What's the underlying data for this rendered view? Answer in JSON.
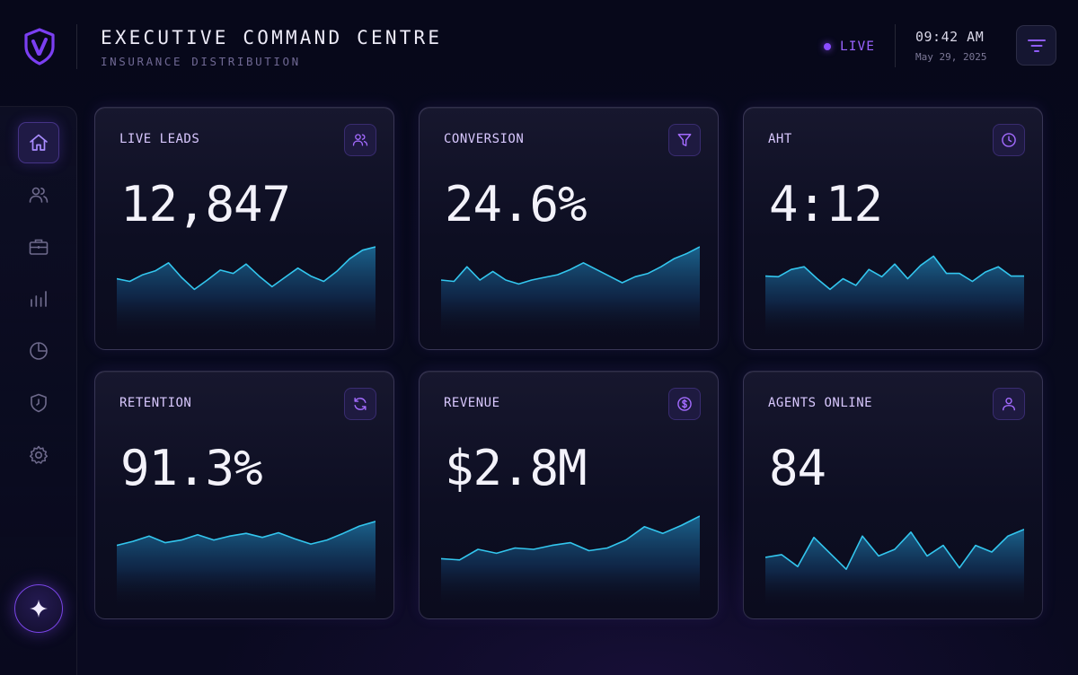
{
  "header": {
    "title": "EXECUTIVE COMMAND CENTRE",
    "subtitle": "INSURANCE DISTRIBUTION",
    "live_label": "LIVE",
    "time": "09:42 AM",
    "date": "May 29, 2025",
    "logo_icon": "shield-logo-icon",
    "filter_icon": "filter-icon"
  },
  "sidebar": {
    "items": [
      {
        "icon": "home-icon",
        "active": true
      },
      {
        "icon": "users-icon",
        "active": false
      },
      {
        "icon": "briefcase-icon",
        "active": false
      },
      {
        "icon": "bar-chart-icon",
        "active": false
      },
      {
        "icon": "pie-chart-icon",
        "active": false
      },
      {
        "icon": "shield-clock-icon",
        "active": false
      },
      {
        "icon": "gear-icon",
        "active": false
      }
    ],
    "fab_icon": "sparkle-icon"
  },
  "colors": {
    "accent": "#8b4dff",
    "line": "#33c6ee",
    "background": "#070818"
  },
  "cards": [
    {
      "label": "LIVE LEADS",
      "value": "12,847",
      "icon": "users-icon",
      "trend": [
        52,
        48,
        58,
        64,
        76,
        54,
        36,
        50,
        65,
        60,
        74,
        56,
        40,
        54,
        68,
        56,
        48,
        63,
        82,
        95,
        100
      ]
    },
    {
      "label": "CONVERSION",
      "value": "24.6%",
      "icon": "filter-icon",
      "trend": [
        50,
        48,
        70,
        50,
        63,
        50,
        44,
        50,
        54,
        58,
        66,
        76,
        66,
        56,
        46,
        55,
        60,
        70,
        82,
        90,
        100
      ]
    },
    {
      "label": "AHT",
      "value": "4:12",
      "icon": "clock-icon",
      "trend": [
        56,
        55,
        66,
        70,
        52,
        36,
        52,
        42,
        66,
        55,
        74,
        52,
        72,
        86,
        60,
        60,
        48,
        62,
        70,
        56,
        56
      ]
    },
    {
      "label": "RETENTION",
      "value": "91.3%",
      "icon": "refresh-icon",
      "trend": [
        56,
        62,
        70,
        60,
        64,
        72,
        64,
        70,
        74,
        68,
        75,
        66,
        58,
        64,
        74,
        85,
        92
      ]
    },
    {
      "label": "REVENUE",
      "value": "$2.8M",
      "icon": "dollar-icon",
      "trend": [
        36,
        34,
        50,
        44,
        52,
        50,
        56,
        60,
        48,
        52,
        64,
        84,
        74,
        86,
        100
      ]
    },
    {
      "label": "AGENTS ONLINE",
      "value": "84",
      "icon": "user-icon",
      "trend": [
        38,
        42,
        24,
        68,
        44,
        20,
        70,
        40,
        50,
        76,
        40,
        56,
        22,
        56,
        46,
        70,
        80
      ]
    }
  ]
}
